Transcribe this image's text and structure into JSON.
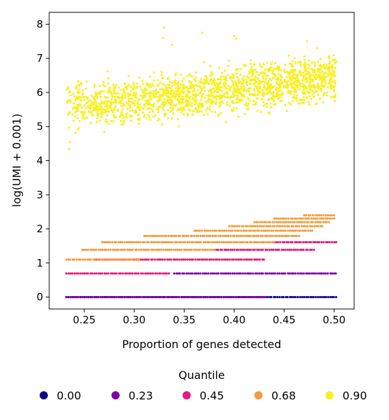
{
  "chart_data": {
    "type": "scatter",
    "xlabel": "Proportion of genes detected",
    "ylabel": "log(UMI + 0.001)",
    "xlim": [
      0.215,
      0.52
    ],
    "ylim": [
      -0.35,
      8.35
    ],
    "xticks": [
      0.25,
      0.3,
      0.35,
      0.4,
      0.45,
      0.5
    ],
    "xtick_labels": [
      "0.25",
      "0.30",
      "0.35",
      "0.40",
      "0.45",
      "0.50"
    ],
    "yticks": [
      0,
      1,
      2,
      3,
      4,
      5,
      6,
      7,
      8
    ],
    "ytick_labels": [
      "0",
      "1",
      "2",
      "3",
      "4",
      "5",
      "6",
      "7",
      "8"
    ],
    "grid": false,
    "legend": {
      "title": "Quantile",
      "placement": "bottom",
      "entries": [
        {
          "label": "0.00",
          "color": "#0d0887"
        },
        {
          "label": "0.23",
          "color": "#7e03a8"
        },
        {
          "label": "0.45",
          "color": "#e8197a"
        },
        {
          "label": "0.68",
          "color": "#f89a3a"
        },
        {
          "label": "0.90",
          "color": "#f9ef21"
        }
      ]
    },
    "series": [
      {
        "name": "0.00",
        "color": "#0d0887",
        "bands": [
          {
            "y": 0.0,
            "x_range": [
              0.232,
              0.502
            ]
          }
        ]
      },
      {
        "name": "0.23",
        "color": "#7e03a8",
        "bands": [
          {
            "y": 0.0,
            "x_range": [
              0.232,
              0.432
            ]
          },
          {
            "y": 0.693,
            "x_range": [
              0.34,
              0.502
            ]
          }
        ]
      },
      {
        "name": "0.45",
        "color": "#e8197a",
        "bands": [
          {
            "y": 0.693,
            "x_range": [
              0.232,
              0.335
            ]
          },
          {
            "y": 1.099,
            "x_range": [
              0.26,
              0.43
            ]
          },
          {
            "y": 1.386,
            "x_range": [
              0.38,
              0.48
            ]
          },
          {
            "y": 1.609,
            "x_range": [
              0.44,
              0.502
            ]
          }
        ]
      },
      {
        "name": "0.68",
        "color": "#f89a3a",
        "bands": [
          {
            "y": 1.099,
            "x_range": [
              0.232,
              0.305
            ]
          },
          {
            "y": 1.386,
            "x_range": [
              0.248,
              0.38
            ]
          },
          {
            "y": 1.609,
            "x_range": [
              0.268,
              0.44
            ]
          },
          {
            "y": 1.792,
            "x_range": [
              0.31,
              0.465
            ]
          },
          {
            "y": 1.946,
            "x_range": [
              0.36,
              0.478
            ]
          },
          {
            "y": 2.079,
            "x_range": [
              0.395,
              0.488
            ]
          },
          {
            "y": 2.197,
            "x_range": [
              0.42,
              0.495
            ]
          },
          {
            "y": 2.303,
            "x_range": [
              0.44,
              0.5
            ]
          },
          {
            "y": 2.398,
            "x_range": [
              0.47,
              0.5
            ]
          }
        ]
      },
      {
        "name": "0.90",
        "color": "#f9ef21",
        "cloud": {
          "x_range": [
            0.232,
            0.502
          ],
          "trend": [
            [
              0.232,
              5.55
            ],
            [
              0.502,
              6.45
            ]
          ],
          "spread": 0.32,
          "y_range": [
            4.3,
            7.95
          ]
        }
      }
    ]
  }
}
